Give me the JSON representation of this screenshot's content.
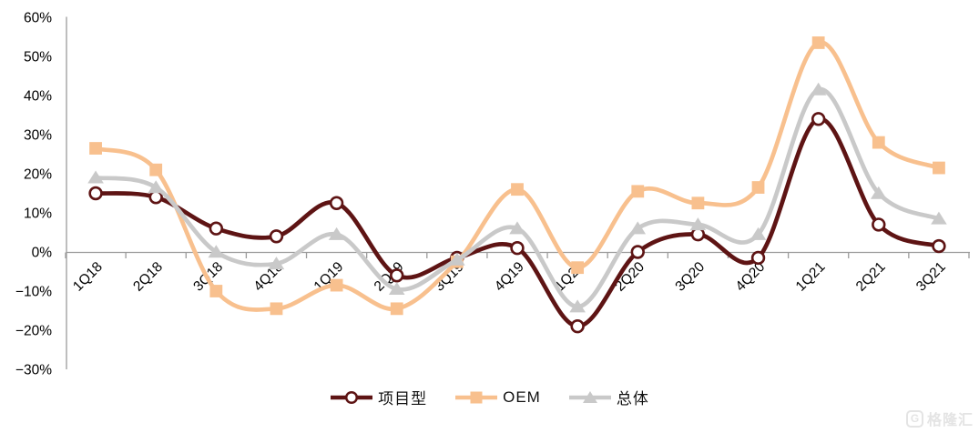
{
  "chart_data": {
    "type": "line",
    "title": "",
    "xlabel": "",
    "ylabel": "",
    "categories": [
      "1Q18",
      "2Q18",
      "3Q18",
      "4Q18",
      "1Q19",
      "2Q19",
      "3Q19",
      "4Q19",
      "1Q20",
      "2Q20",
      "3Q20",
      "4Q20",
      "1Q21",
      "2Q21",
      "3Q21"
    ],
    "series": [
      {
        "key": "project-type",
        "name": "项目型",
        "marker": "circle",
        "color": "#5e1414",
        "marker_fill": "#ffffff",
        "values": [
          15,
          14,
          6,
          4,
          12.5,
          -6,
          -1.5,
          1,
          -19,
          0,
          4.5,
          -1.5,
          34,
          7,
          1.5
        ]
      },
      {
        "key": "oem",
        "name": "OEM",
        "marker": "square",
        "color": "#f8c08e",
        "marker_fill": "#f8c08e",
        "values": [
          26.5,
          21,
          -10,
          -14.5,
          -8.5,
          -14.5,
          -2.5,
          16,
          -4,
          15.5,
          12.5,
          16.5,
          53.5,
          28,
          21.5
        ]
      },
      {
        "key": "overall",
        "name": "总体",
        "marker": "triangle",
        "color": "#c9c9c9",
        "marker_fill": "#c9c9c9",
        "values": [
          19,
          16.5,
          0,
          -3,
          4.5,
          -9.5,
          -2,
          6,
          -14,
          6,
          7,
          4.5,
          41.5,
          15,
          8.5
        ]
      }
    ],
    "ylim": [
      -30,
      60
    ],
    "ytick_step": 10,
    "ytick_labels": [
      "60%",
      "50%",
      "40%",
      "30%",
      "20%",
      "10%",
      "0%",
      "−10%",
      "−20%",
      "−30%"
    ],
    "grid": false,
    "smoothed": true,
    "legend_position": "bottom"
  },
  "colors": {
    "axis": "#9b9b9b",
    "tick_label": "#000000"
  },
  "watermark": {
    "icon_letter": "G",
    "text": "格隆汇"
  }
}
